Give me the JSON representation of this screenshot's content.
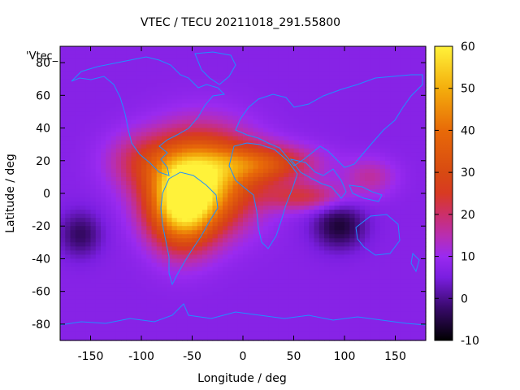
{
  "chart_data": {
    "type": "heatmap",
    "title": "VTEC / TECU 20211018_291.55800",
    "xlabel": "Longitude / deg",
    "ylabel": "Latitude / deg",
    "xlim": [
      -180,
      180
    ],
    "ylim": [
      -90,
      90
    ],
    "x_ticks": [
      -150,
      -100,
      -50,
      0,
      50,
      100,
      150
    ],
    "y_ticks": [
      -80,
      -60,
      -40,
      -20,
      0,
      20,
      40,
      60,
      80
    ],
    "colorbar": {
      "range": [
        -10,
        60
      ],
      "ticks": [
        60,
        50,
        40,
        30,
        20,
        10,
        0,
        -10
      ],
      "stops": [
        {
          "v": -10,
          "c": "#000000"
        },
        {
          "v": -2,
          "c": "#3a0a6e"
        },
        {
          "v": 5,
          "c": "#7a1ee0"
        },
        {
          "v": 10,
          "c": "#9a2af0"
        },
        {
          "v": 15,
          "c": "#b92eb0"
        },
        {
          "v": 20,
          "c": "#cc2f6a"
        },
        {
          "v": 25,
          "c": "#d83a22"
        },
        {
          "v": 30,
          "c": "#d84a12"
        },
        {
          "v": 40,
          "c": "#e86a08"
        },
        {
          "v": 50,
          "c": "#f4ae0c"
        },
        {
          "v": 60,
          "c": "#fff23a"
        }
      ]
    },
    "background_value": 7,
    "features": [
      {
        "name": "equatorial-anomaly-atlantic",
        "lon": -40,
        "lat": 8,
        "peak": 50,
        "sx": 35,
        "sy": 20
      },
      {
        "name": "south-america-peak",
        "lon": -60,
        "lat": -8,
        "peak": 46,
        "sx": 22,
        "sy": 18
      },
      {
        "name": "north-africa-band",
        "lon": 20,
        "lat": 18,
        "peak": 30,
        "sx": 35,
        "sy": 8
      },
      {
        "name": "indian-ocean-tongue",
        "lon": 60,
        "lat": -2,
        "peak": 22,
        "sx": 28,
        "sy": 6
      },
      {
        "name": "maritime-continent",
        "lon": 125,
        "lat": 10,
        "peak": 16,
        "sx": 18,
        "sy": 8
      },
      {
        "name": "central-america",
        "lon": -100,
        "lat": 20,
        "peak": 18,
        "sx": 25,
        "sy": 12
      },
      {
        "name": "low-australia",
        "lon": 95,
        "lat": -20,
        "peak": -6,
        "sx": 18,
        "sy": 10
      },
      {
        "name": "low-south-pacific",
        "lon": -160,
        "lat": -25,
        "peak": -3,
        "sx": 15,
        "sy": 10
      }
    ],
    "grid": false,
    "legend": {
      "label": "'Vtec_",
      "position": "top-left"
    }
  },
  "colors": {
    "coastline": "#1e90ff",
    "background": "#ffffff"
  }
}
